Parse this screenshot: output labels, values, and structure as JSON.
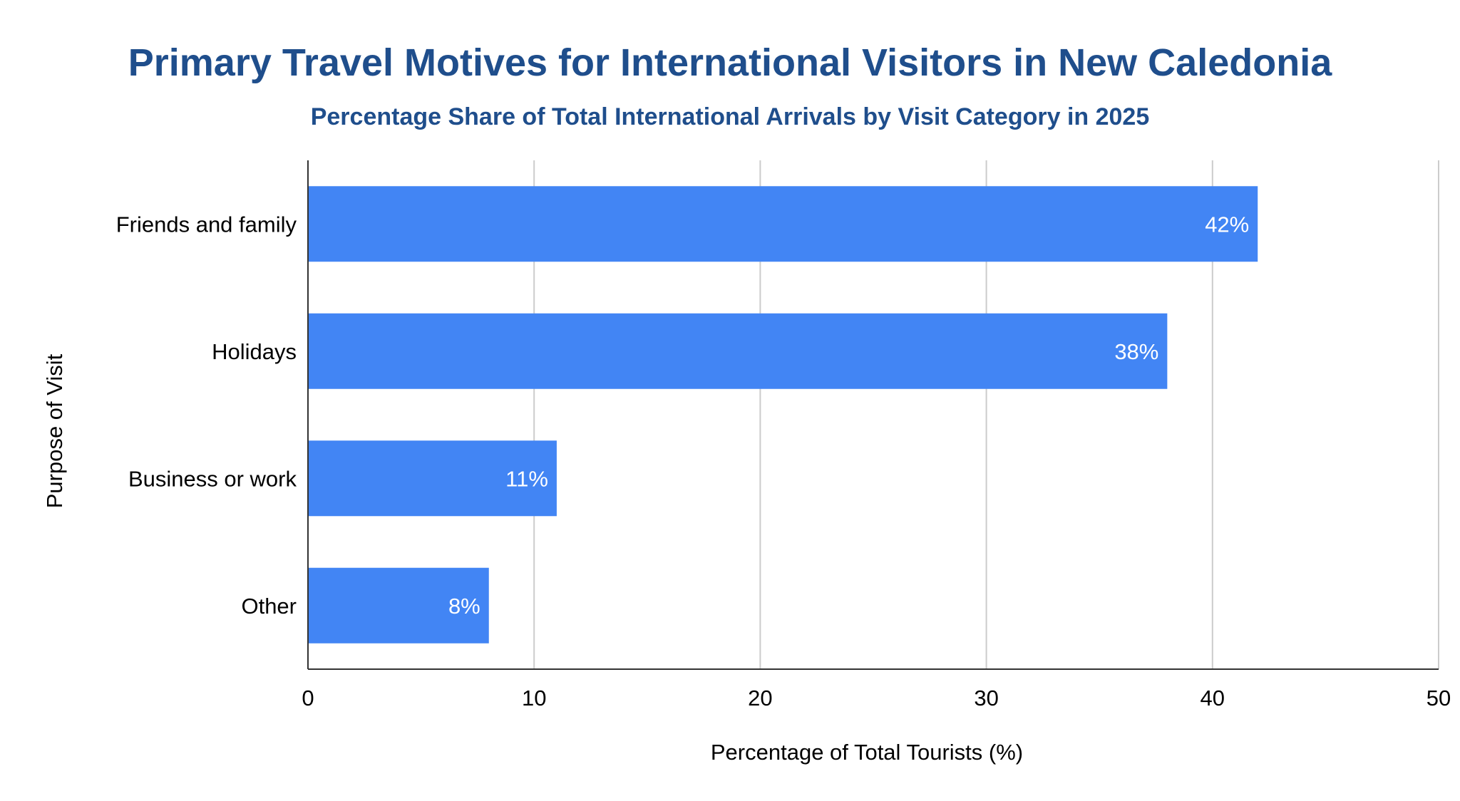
{
  "chart_data": {
    "type": "bar",
    "orientation": "horizontal",
    "title": "Primary Travel Motives for International Visitors in New Caledonia",
    "subtitle": "Percentage Share of Total International Arrivals by Visit Category in 2025",
    "xlabel": "Percentage of Total Tourists (%)",
    "ylabel": "Purpose of Visit",
    "categories": [
      "Friends and family",
      "Holidays",
      "Business or work",
      "Other"
    ],
    "values": [
      42,
      38,
      11,
      8
    ],
    "data_labels": [
      "42%",
      "38%",
      "11%",
      "8%"
    ],
    "xlim": [
      0,
      50
    ],
    "xticks": [
      0,
      10,
      20,
      30,
      40,
      50
    ],
    "xtick_labels": [
      "0",
      "10",
      "20",
      "30",
      "40",
      "50"
    ],
    "grid": "vertical",
    "legend": "none",
    "colors": {
      "bar": "#4285f4",
      "title": "#1f4e8c",
      "grid": "#cccccc",
      "axis": "#333333",
      "text": "#000000",
      "data_label": "#ffffff"
    }
  }
}
